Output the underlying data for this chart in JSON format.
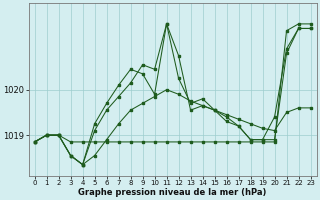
{
  "xlabel": "Graphe pression niveau de la mer (hPa)",
  "bg_color": "#d4eef0",
  "line_color": "#1e5c1e",
  "grid_color": "#9ecece",
  "x_ticks": [
    0,
    1,
    2,
    3,
    4,
    5,
    6,
    7,
    8,
    9,
    10,
    11,
    12,
    13,
    14,
    15,
    16,
    17,
    18,
    19,
    20,
    21,
    22,
    23
  ],
  "ylim": [
    1018.1,
    1021.9
  ],
  "yticks": [
    1019,
    1020
  ],
  "series": [
    [
      1018.85,
      1019.0,
      1019.0,
      1018.85,
      1018.85,
      1018.85,
      1018.85,
      1018.85,
      1018.85,
      1018.85,
      1018.85,
      1018.85,
      1018.85,
      1018.85,
      1018.85,
      1018.85,
      1018.85,
      1018.85,
      1018.85,
      1018.85,
      1018.85,
      1021.3,
      1021.45,
      1021.45
    ],
    [
      1018.85,
      1019.0,
      1019.0,
      1018.55,
      1018.35,
      1018.55,
      1018.9,
      1019.25,
      1019.55,
      1019.7,
      1019.85,
      1020.0,
      1019.9,
      1019.75,
      1019.65,
      1019.55,
      1019.45,
      1019.35,
      1019.25,
      1019.15,
      1019.1,
      1019.5,
      1019.6,
      1019.6
    ],
    [
      1018.85,
      1019.0,
      1019.0,
      1018.55,
      1018.35,
      1019.25,
      1019.7,
      1020.1,
      1020.45,
      1020.35,
      1019.9,
      1021.45,
      1020.25,
      1019.7,
      1019.8,
      1019.55,
      1019.3,
      1019.2,
      1018.9,
      1018.9,
      1018.9,
      1020.8,
      1021.35,
      1021.35
    ],
    [
      1018.85,
      1019.0,
      1019.0,
      1018.55,
      1018.35,
      1019.1,
      1019.55,
      1019.85,
      1020.15,
      1020.55,
      1020.45,
      1021.45,
      1020.75,
      1019.55,
      1019.65,
      1019.55,
      1019.4,
      1019.2,
      1018.9,
      1018.9,
      1019.4,
      1020.9,
      1021.35,
      1021.35
    ]
  ]
}
